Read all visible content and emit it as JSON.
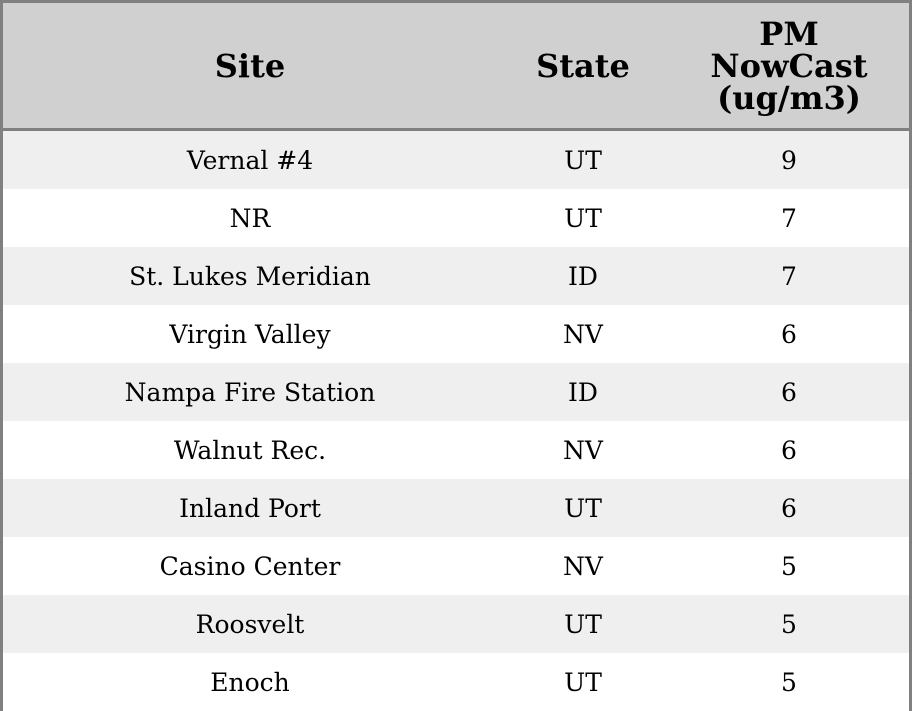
{
  "table": {
    "columns": [
      "Site",
      "State",
      "PM NowCast (ug/m3)"
    ],
    "rows": [
      [
        "Vernal #4",
        "UT",
        "9"
      ],
      [
        "NR",
        "UT",
        "7"
      ],
      [
        "St. Lukes Meridian",
        "ID",
        "7"
      ],
      [
        "Virgin Valley",
        "NV",
        "6"
      ],
      [
        "Nampa Fire Station",
        "ID",
        "6"
      ],
      [
        "Walnut Rec.",
        "NV",
        "6"
      ],
      [
        "Inland Port",
        "UT",
        "6"
      ],
      [
        "Casino Center",
        "NV",
        "5"
      ],
      [
        "Roosvelt",
        "UT",
        "5"
      ],
      [
        "Enoch",
        "UT",
        "5"
      ]
    ]
  },
  "colors": {
    "header_bg": "#d0d0d0",
    "stripe": "#efefef",
    "border": "#808080"
  }
}
